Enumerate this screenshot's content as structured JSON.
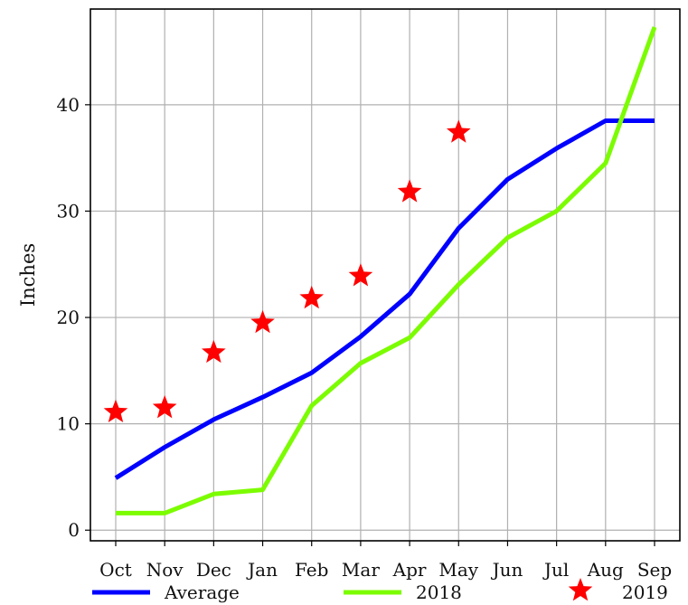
{
  "chart_data": {
    "type": "line",
    "title": "",
    "xlabel": "",
    "ylabel": "Inches",
    "categories": [
      "Oct",
      "Nov",
      "Dec",
      "Jan",
      "Feb",
      "Mar",
      "Apr",
      "May",
      "Jun",
      "Jul",
      "Aug",
      "Sep"
    ],
    "ylim": [
      -1,
      49
    ],
    "yticks": [
      0,
      10,
      20,
      30,
      40
    ],
    "grid": true,
    "legend_placement": "bottom",
    "series": [
      {
        "name": "Average",
        "style": "line",
        "color": "#0000ff",
        "values": [
          4.9,
          7.8,
          10.4,
          12.5,
          14.8,
          18.2,
          22.2,
          28.4,
          33.0,
          35.9,
          38.5,
          38.5
        ]
      },
      {
        "name": "2018",
        "style": "line",
        "color": "#7cfc00",
        "values": [
          1.6,
          1.6,
          3.4,
          3.8,
          11.7,
          15.7,
          18.1,
          23.1,
          27.5,
          30.0,
          34.5,
          47.3
        ]
      },
      {
        "name": "2019",
        "style": "star",
        "color": "#ff0000",
        "values": [
          11.1,
          11.5,
          16.7,
          19.5,
          21.8,
          23.9,
          31.8,
          37.4,
          null,
          null,
          null,
          null
        ]
      }
    ]
  }
}
